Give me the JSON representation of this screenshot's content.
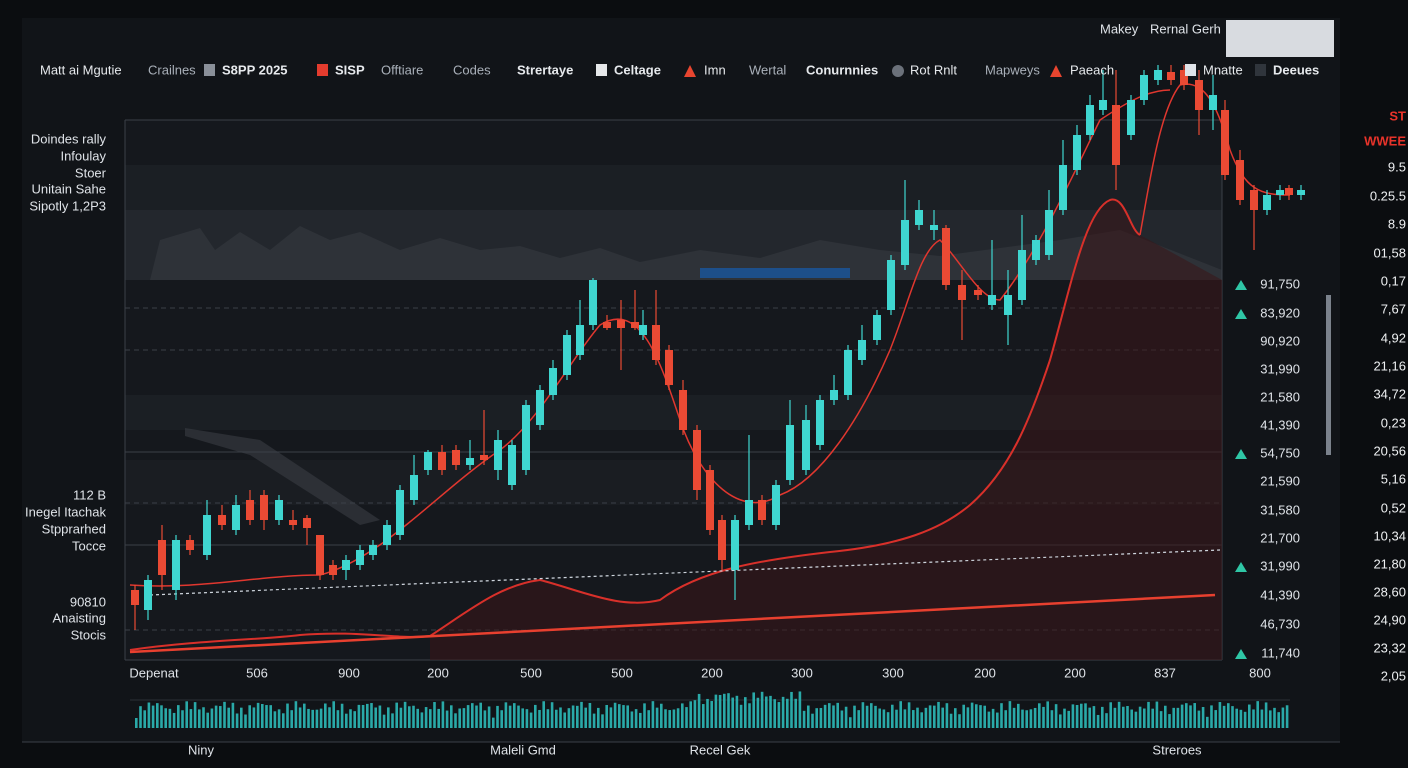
{
  "header": {
    "right_labels": [
      "Makey",
      "Rernal Gerh"
    ]
  },
  "toolbar": [
    "Matt ai Mgutie",
    "Crailnes",
    "S8PP 2025",
    "SISP",
    "Offtiare",
    "Codes",
    "Strertaye",
    "Celtage",
    "Imn",
    "Wertal",
    "Conurnnies",
    "Rot Rnlt",
    "Mapweys",
    "Paeach",
    "Mnatte",
    "Deeues"
  ],
  "side_labels": [
    [
      "Doindes rally",
      "Infoulay",
      "Stoer",
      "Unitain Sahe",
      "Sipotly 1,2P3"
    ],
    [
      "112 B",
      "Inegel Itachak",
      "Stpprarhed",
      "Tocce"
    ],
    [
      "90810",
      "Anaisting",
      "Stocis"
    ]
  ],
  "price_list": [
    {
      "label": "91,750",
      "up": true
    },
    {
      "label": "83,920",
      "up": true
    },
    {
      "label": "90,920",
      "up": false
    },
    {
      "label": "31,990",
      "up": false
    },
    {
      "label": "21,580",
      "up": false
    },
    {
      "label": "41,390",
      "up": false
    },
    {
      "label": "54,750",
      "up": true
    },
    {
      "label": "21,590",
      "up": false
    },
    {
      "label": "31,580",
      "up": false
    },
    {
      "label": "21,700",
      "up": false
    },
    {
      "label": "31,990",
      "up": true
    },
    {
      "label": "41,390",
      "up": false
    },
    {
      "label": "46,730",
      "up": false
    },
    {
      "label": "11,740",
      "up": true
    }
  ],
  "far_right": [
    "ST",
    "WWEE",
    "9.5",
    "0.25.5",
    "8.9",
    "01,58",
    "0,17",
    "7,67",
    "4,92",
    "21,16",
    "34,72",
    "0,23",
    "20,56",
    "5,16",
    "0,52",
    "10,34",
    "21,80",
    "28,60",
    "24,90",
    "23,32",
    "2,05"
  ],
  "x_labels": [
    "Depenat",
    "506",
    "900",
    "200",
    "500",
    "500",
    "200",
    "300",
    "300",
    "200",
    "200",
    "837",
    "800"
  ],
  "footer": [
    "Niny",
    "Maleli Gmd",
    "Recel Gek",
    "Streroes"
  ]
}
